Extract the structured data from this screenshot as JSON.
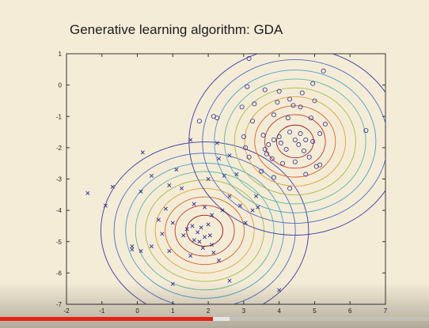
{
  "slide": {
    "title": "Generative learning algorithm: GDA"
  },
  "colors": {
    "background": "#f5ecd7",
    "markers": "#2d2d8c",
    "progress_played": "#e62117",
    "contour_palette": [
      "#9a1e1e",
      "#c23a2a",
      "#d9662c",
      "#dba33a",
      "#a5b94a",
      "#5cb79a",
      "#4a9fc8",
      "#4a6cc4",
      "#3a3aa0"
    ]
  },
  "video": {
    "progress_played": 0.497,
    "progress_buffered": 0.535
  },
  "chart_data": {
    "type": "scatter",
    "xlim": [
      -2,
      7
    ],
    "ylim": [
      -7,
      1
    ],
    "xticks": [
      "-2",
      "-1",
      "0",
      "1",
      "2",
      "3",
      "4",
      "5",
      "6",
      "7"
    ],
    "yticks": [
      "1",
      "0",
      "-1",
      "-2",
      "-3",
      "-4",
      "-5",
      "-6",
      "-7"
    ],
    "grid": false,
    "series": [
      {
        "marker": "x",
        "points": [
          [
            -1.4,
            -3.45
          ],
          [
            -0.9,
            -3.85
          ],
          [
            -0.7,
            -3.25
          ],
          [
            -0.15,
            -5.25
          ],
          [
            -0.15,
            -5.15
          ],
          [
            0.1,
            -3.4
          ],
          [
            0.1,
            -5.3
          ],
          [
            0.15,
            -2.15
          ],
          [
            0.4,
            -5.15
          ],
          [
            0.4,
            -2.9
          ],
          [
            0.6,
            -4.3
          ],
          [
            0.7,
            -4.75
          ],
          [
            0.8,
            -3.95
          ],
          [
            0.9,
            -3.2
          ],
          [
            0.9,
            -5.3
          ],
          [
            1.0,
            -4.4
          ],
          [
            1.0,
            -6.35
          ],
          [
            1.1,
            -2.7
          ],
          [
            1.25,
            -3.3
          ],
          [
            1.3,
            -4.8
          ],
          [
            1.4,
            -4.6
          ],
          [
            1.5,
            -5.45
          ],
          [
            1.5,
            -1.75
          ],
          [
            1.55,
            -4.5
          ],
          [
            1.6,
            -4.95
          ],
          [
            1.6,
            -3.8
          ],
          [
            1.7,
            -4.7
          ],
          [
            1.75,
            -5.0
          ],
          [
            1.8,
            -4.55
          ],
          [
            1.85,
            -5.2
          ],
          [
            1.9,
            -4.85
          ],
          [
            2.0,
            -4.45
          ],
          [
            2.05,
            -4.8
          ],
          [
            2.1,
            -5.1
          ],
          [
            2.0,
            -3.0
          ],
          [
            1.9,
            -3.9
          ],
          [
            2.1,
            -4.15
          ],
          [
            2.15,
            -5.35
          ],
          [
            2.3,
            -5.6
          ],
          [
            2.3,
            -2.35
          ],
          [
            2.4,
            -4.0
          ],
          [
            2.45,
            -2.9
          ],
          [
            2.6,
            -2.25
          ],
          [
            2.6,
            -3.55
          ],
          [
            2.6,
            -6.25
          ],
          [
            2.8,
            -2.85
          ],
          [
            2.9,
            -3.85
          ],
          [
            3.05,
            -4.4
          ],
          [
            3.25,
            -4.0
          ],
          [
            3.35,
            -3.55
          ],
          [
            3.4,
            -3.9
          ],
          [
            4.0,
            -6.55
          ],
          [
            2.25,
            -1.85
          ]
        ]
      },
      {
        "marker": "o",
        "points": [
          [
            3.15,
            0.85
          ],
          [
            5.25,
            0.45
          ],
          [
            4.95,
            0.05
          ],
          [
            3.1,
            -0.05
          ],
          [
            3.6,
            -0.15
          ],
          [
            4.0,
            -0.2
          ],
          [
            4.65,
            -0.25
          ],
          [
            2.95,
            -0.7
          ],
          [
            3.3,
            -0.6
          ],
          [
            3.95,
            -0.55
          ],
          [
            4.3,
            -0.45
          ],
          [
            4.4,
            -0.65
          ],
          [
            4.6,
            -0.7
          ],
          [
            5.0,
            -0.5
          ],
          [
            1.75,
            -1.15
          ],
          [
            2.15,
            -1.0
          ],
          [
            2.25,
            -1.05
          ],
          [
            3.25,
            -1.15
          ],
          [
            3.85,
            -0.95
          ],
          [
            4.25,
            -1.05
          ],
          [
            4.9,
            -1.05
          ],
          [
            5.3,
            -1.25
          ],
          [
            3.0,
            -1.65
          ],
          [
            3.05,
            -2.0
          ],
          [
            3.55,
            -1.6
          ],
          [
            3.7,
            -1.9
          ],
          [
            3.85,
            -1.75
          ],
          [
            4.0,
            -1.65
          ],
          [
            4.05,
            -1.85
          ],
          [
            4.2,
            -2.05
          ],
          [
            4.3,
            -1.5
          ],
          [
            4.45,
            -1.75
          ],
          [
            4.55,
            -1.9
          ],
          [
            4.6,
            -1.55
          ],
          [
            4.7,
            -2.1
          ],
          [
            4.85,
            -2.3
          ],
          [
            4.95,
            -1.8
          ],
          [
            5.15,
            -1.55
          ],
          [
            3.65,
            -2.2
          ],
          [
            3.8,
            -2.35
          ],
          [
            4.1,
            -2.5
          ],
          [
            4.45,
            -2.45
          ],
          [
            3.15,
            -2.3
          ],
          [
            3.5,
            -2.75
          ],
          [
            3.85,
            -2.95
          ],
          [
            4.3,
            -3.3
          ],
          [
            5.05,
            -2.6
          ],
          [
            5.15,
            -2.55
          ],
          [
            4.75,
            -2.85
          ],
          [
            6.45,
            -1.45
          ],
          [
            3.6,
            -2.05
          ],
          [
            4.75,
            -1.75
          ]
        ]
      }
    ],
    "contours": [
      {
        "center": [
          1.9,
          -4.65
        ],
        "sx": 0.93,
        "sy": 0.9
      },
      {
        "center": [
          4.45,
          -1.8
        ],
        "sx": 0.95,
        "sy": 0.95
      }
    ]
  }
}
